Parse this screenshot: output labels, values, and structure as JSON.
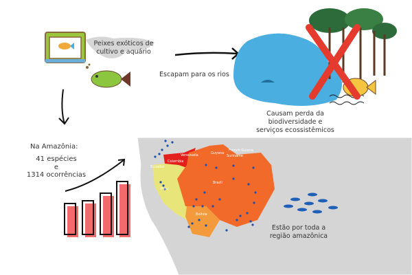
{
  "steps": {
    "source": "Peixes exóticos de cultivo e aquário",
    "escape": "Escapam para os rios",
    "impact": "Causam perda da biodiversidade e serviços ecossistêmicos",
    "spread": "Estão por toda a região amazônica",
    "amazon_title": "Na Amazônia:",
    "species": "41 espécies",
    "and": "e",
    "occurrences": "1314 ocorrências"
  },
  "map": {
    "countries": [
      "Venezuela",
      "Colombia",
      "Ecuador",
      "Peru",
      "Brazil",
      "Bolivia",
      "Guyana",
      "French Guiana",
      "Suriname"
    ]
  },
  "colors": {
    "brazil": "#f26a2a",
    "bolivia": "#f39a3c",
    "peru": "#e8e57a",
    "colombia": "#e3201b",
    "points": "#1f4fa8",
    "water": "#4aaee0",
    "cross": "#e53b2e"
  }
}
